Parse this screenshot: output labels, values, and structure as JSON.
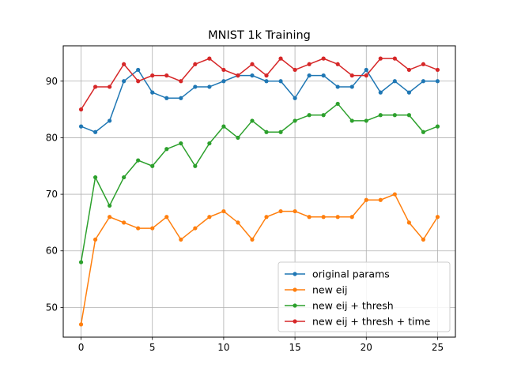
{
  "chart_data": {
    "type": "line",
    "title": "MNIST 1k Training",
    "xlabel": "",
    "ylabel": "",
    "xlim": [
      -1.25,
      26.25
    ],
    "ylim": [
      44.75,
      96.25
    ],
    "xticks": [
      0,
      5,
      10,
      15,
      20,
      25
    ],
    "yticks": [
      50,
      60,
      70,
      80,
      90
    ],
    "grid": true,
    "legend_position": "lower-right",
    "x": [
      0,
      1,
      2,
      3,
      4,
      5,
      6,
      7,
      8,
      9,
      10,
      11,
      12,
      13,
      14,
      15,
      16,
      17,
      18,
      19,
      20,
      21,
      22,
      23,
      24,
      25
    ],
    "series": [
      {
        "name": "original params",
        "color": "#1f77b4",
        "values": [
          82,
          81,
          83,
          90,
          92,
          88,
          87,
          87,
          89,
          89,
          90,
          91,
          91,
          90,
          90,
          87,
          91,
          91,
          89,
          89,
          92,
          88,
          90,
          88,
          90,
          90
        ]
      },
      {
        "name": "new eij",
        "color": "#ff7f0e",
        "values": [
          47,
          62,
          66,
          65,
          64,
          64,
          66,
          62,
          64,
          66,
          67,
          65,
          62,
          66,
          67,
          67,
          66,
          66,
          66,
          66,
          69,
          69,
          70,
          65,
          62,
          66
        ]
      },
      {
        "name": "new eij + thresh",
        "color": "#2ca02c",
        "values": [
          58,
          73,
          68,
          73,
          76,
          75,
          78,
          79,
          75,
          79,
          82,
          80,
          83,
          81,
          81,
          83,
          84,
          84,
          86,
          83,
          83,
          84,
          84,
          84,
          81,
          82
        ]
      },
      {
        "name": "new eij + thresh + time",
        "color": "#d62728",
        "values": [
          85,
          89,
          89,
          93,
          90,
          91,
          91,
          90,
          93,
          94,
          92,
          91,
          93,
          91,
          94,
          92,
          93,
          94,
          93,
          91,
          91,
          94,
          94,
          92,
          93,
          92
        ]
      }
    ]
  }
}
